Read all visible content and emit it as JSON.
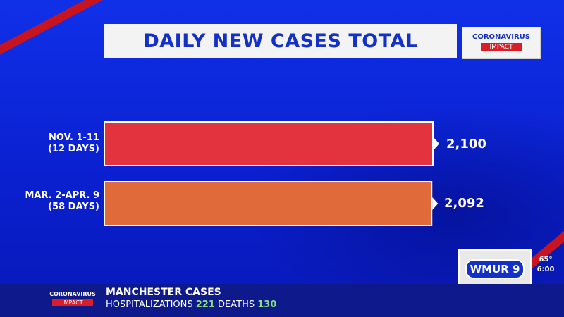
{
  "header": {
    "title": "DAILY NEW CASES TOTAL",
    "badge_line1": "CORONAVIRUS",
    "badge_line2": "IMPACT"
  },
  "chart_data": {
    "type": "bar",
    "orientation": "horizontal",
    "title": "DAILY NEW CASES TOTAL",
    "categories": [
      "NOV. 1-11\n(12 DAYS)",
      "MAR. 2-APR. 9\n(58 DAYS)"
    ],
    "category_lines": [
      [
        "NOV. 1-11",
        "(12 DAYS)"
      ],
      [
        "MAR. 2-APR. 9",
        "(58 DAYS)"
      ]
    ],
    "values": [
      2100,
      2092
    ],
    "value_labels": [
      "2,100",
      "2,092"
    ],
    "bar_colors": [
      "#e2333f",
      "#e06a3a"
    ],
    "xlim": [
      0,
      2100
    ],
    "grid": false,
    "legend": "none"
  },
  "station": {
    "logo": "WMUR 9",
    "temperature": "65°",
    "time": "6:00"
  },
  "ticker": {
    "badge_line1": "CORONAVIRUS",
    "badge_line2": "IMPACT",
    "title": "MANCHESTER CASES",
    "hosp_label": "HOSPITALIZATIONS",
    "hosp_value": "221",
    "deaths_label": "DEATHS",
    "deaths_value": "130"
  },
  "colors": {
    "background": "#0a1fd6",
    "accent_red": "#d81e28",
    "title_text": "#1330c8",
    "stat_green": "#86e07a"
  }
}
